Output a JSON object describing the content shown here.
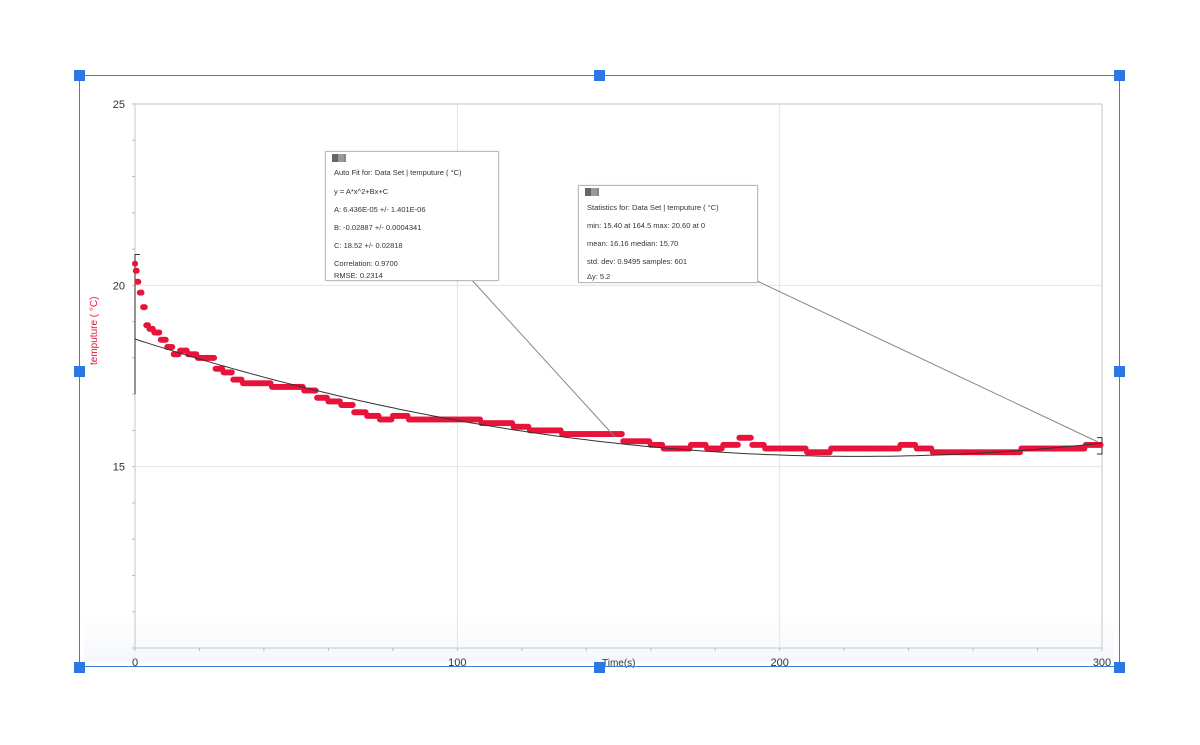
{
  "chart_data": {
    "type": "scatter",
    "title": "",
    "xlabel": "Time(s)",
    "ylabel": "temputure ( °C)",
    "xlim": [
      0,
      300
    ],
    "ylim": [
      10,
      25
    ],
    "x_ticks": [
      0,
      100,
      200,
      300
    ],
    "y_ticks": [
      15,
      20,
      25
    ],
    "grid": true,
    "series": [
      {
        "name": "Data Set | temputure ( °C)",
        "color": "#e8133a",
        "points": [
          [
            0,
            20.6
          ],
          [
            0.5,
            20.4
          ],
          [
            1,
            20.1
          ],
          [
            2,
            19.8
          ],
          [
            3,
            19.4
          ],
          [
            4,
            18.9
          ],
          [
            5,
            18.8
          ],
          [
            7,
            18.7
          ],
          [
            9,
            18.5
          ],
          [
            11,
            18.3
          ],
          [
            13,
            18.1
          ],
          [
            15,
            18.2
          ],
          [
            18,
            18.1
          ],
          [
            21,
            18.0
          ],
          [
            24,
            18.0
          ],
          [
            26,
            17.7
          ],
          [
            29,
            17.6
          ],
          [
            32,
            17.4
          ],
          [
            35,
            17.3
          ],
          [
            40,
            17.3
          ],
          [
            45,
            17.2
          ],
          [
            50,
            17.2
          ],
          [
            55,
            17.1
          ],
          [
            58,
            16.9
          ],
          [
            62,
            16.8
          ],
          [
            66,
            16.7
          ],
          [
            70,
            16.5
          ],
          [
            74,
            16.4
          ],
          [
            78,
            16.3
          ],
          [
            82,
            16.4
          ],
          [
            88,
            16.3
          ],
          [
            95,
            16.3
          ],
          [
            100,
            16.3
          ],
          [
            105,
            16.3
          ],
          [
            110,
            16.2
          ],
          [
            115,
            16.2
          ],
          [
            120,
            16.1
          ],
          [
            125,
            16.0
          ],
          [
            130,
            16.0
          ],
          [
            135,
            15.9
          ],
          [
            140,
            15.9
          ],
          [
            145,
            15.9
          ],
          [
            150,
            15.9
          ],
          [
            153,
            15.7
          ],
          [
            158,
            15.7
          ],
          [
            162,
            15.6
          ],
          [
            166,
            15.5
          ],
          [
            170,
            15.5
          ],
          [
            175,
            15.6
          ],
          [
            180,
            15.5
          ],
          [
            185,
            15.6
          ],
          [
            190,
            15.8
          ],
          [
            193,
            15.6
          ],
          [
            198,
            15.5
          ],
          [
            205,
            15.5
          ],
          [
            212,
            15.4
          ],
          [
            220,
            15.5
          ],
          [
            228,
            15.5
          ],
          [
            235,
            15.5
          ],
          [
            240,
            15.6
          ],
          [
            245,
            15.5
          ],
          [
            250,
            15.4
          ],
          [
            260,
            15.4
          ],
          [
            270,
            15.4
          ],
          [
            280,
            15.5
          ],
          [
            290,
            15.5
          ],
          [
            300,
            15.6
          ]
        ]
      },
      {
        "name": "Auto Fit",
        "color": "#333333",
        "equation": "y = A*x^2+Bx+C",
        "A": 6.436e-05,
        "B": -0.02887,
        "C": 18.52
      }
    ],
    "annotations": [
      {
        "title": "Auto Fit for: Data Set | temputure ( °C)",
        "lines": [
          "y = A*x^2+Bx+C",
          "A: 6.436E-05 +/- 1.401E-06",
          "B: -0.02887 +/- 0.0004341",
          "C: 18.52 +/- 0.02818",
          "Correlation: 0.9700",
          "RMSE: 0.2314"
        ]
      },
      {
        "title": "Statistics for: Data Set | temputure ( °C)",
        "lines": [
          "min: 15.40 at 164.5 max: 20.60 at 0",
          "mean: 16.16 median: 15.70",
          "std. dev: 0.9495 samples: 601",
          "Δy: 5.2"
        ]
      }
    ]
  },
  "labels": {
    "x_axis": "Time(s)",
    "y_axis": "temputure ( °C)",
    "x_ticks": [
      "0",
      "100",
      "200",
      "300"
    ],
    "y_ticks": [
      "15",
      "20",
      "25"
    ]
  },
  "fit_box": {
    "title": "Auto Fit for: Data Set | temputure ( °C)",
    "eq": "y = A*x^2+Bx+C",
    "a": "A: 6.436E-05 +/- 1.401E-06",
    "b": "B: -0.02887 +/- 0.0004341",
    "c": "C: 18.52 +/- 0.02818",
    "corr": "Correlation: 0.9700",
    "rmse": "RMSE: 0.2314"
  },
  "stats_box": {
    "title": "Statistics for: Data Set | temputure ( °C)",
    "minmax": "min: 15.40 at 164.5 max: 20.60 at 0",
    "mean": "mean: 16.16 median: 15.70",
    "std": "std. dev: 0.9495 samples: 601",
    "dy": "Δy: 5.2"
  }
}
